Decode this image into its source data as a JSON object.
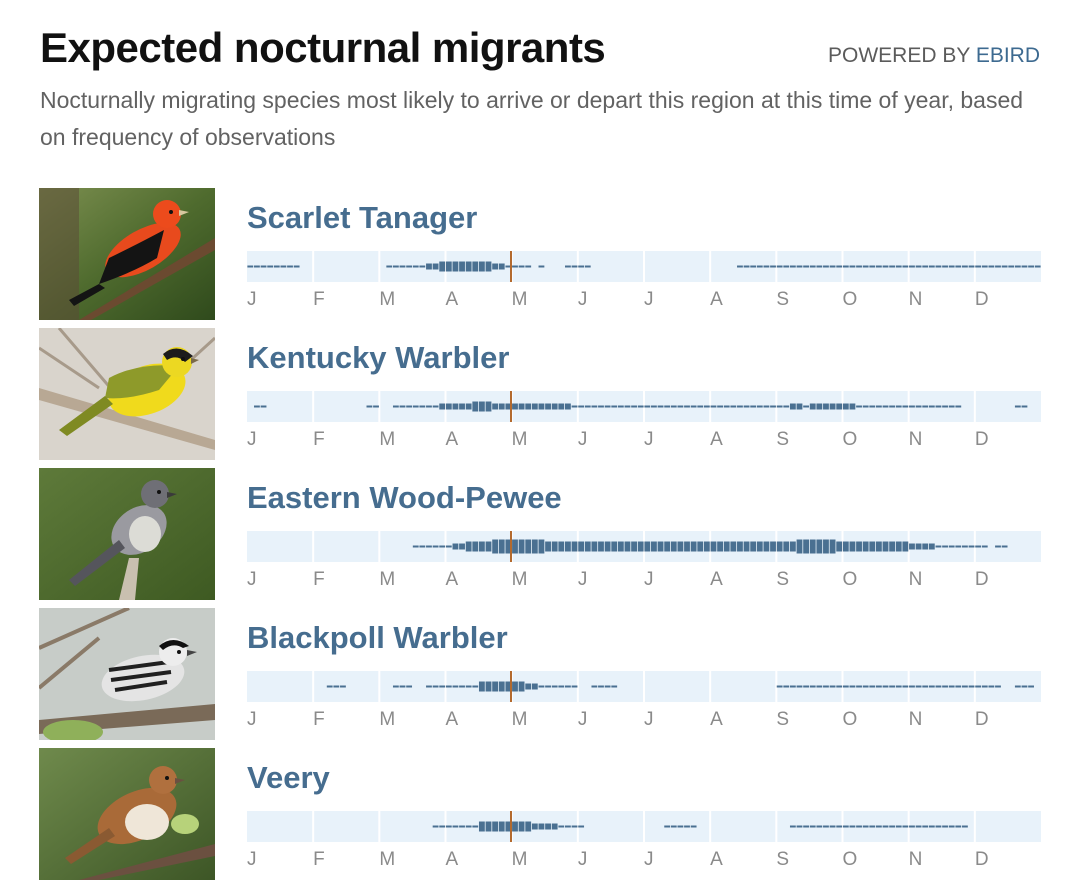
{
  "header": {
    "title": "Expected nocturnal migrants",
    "powered_prefix": "POWERED BY ",
    "powered_brand": "EBIRD",
    "subtitle": "Nocturnally migrating species most likely to arrive or depart this region at this time of year, based on frequency of observations"
  },
  "months": [
    "J",
    "F",
    "M",
    "A",
    "M",
    "J",
    "J",
    "A",
    "S",
    "O",
    "N",
    "D"
  ],
  "colors": {
    "bar": "#4a7091",
    "bar_background": "#e8f2fa",
    "current_date_marker": "#b36a2e",
    "species_name": "#466d8f"
  },
  "species": [
    {
      "name": "Scarlet Tanager",
      "photo_icon": "scarlet-tanager-photo",
      "frequency": [
        1,
        1,
        1,
        1,
        1,
        1,
        1,
        1,
        0,
        0,
        0,
        0,
        0,
        0,
        0,
        0,
        0,
        0,
        0,
        0,
        0,
        1,
        1,
        1,
        1,
        1,
        1,
        2,
        2,
        3,
        3,
        3,
        3,
        3,
        3,
        3,
        3,
        2,
        2,
        1,
        1,
        1,
        1,
        0,
        1,
        0,
        0,
        0,
        1,
        1,
        1,
        1,
        0,
        0,
        0,
        0,
        0,
        0,
        0,
        0,
        0,
        0,
        0,
        0,
        0,
        0,
        0,
        0,
        0,
        0,
        0,
        0,
        0,
        0,
        1,
        1,
        1,
        1,
        1,
        1,
        1,
        1,
        1,
        1,
        1,
        1,
        1,
        1,
        1,
        1,
        1,
        1,
        1,
        1,
        1,
        1,
        1,
        1,
        1,
        1,
        1,
        1,
        1,
        1,
        1,
        1,
        1,
        1,
        1,
        1,
        1,
        1,
        1,
        1,
        1,
        1,
        1,
        1,
        1,
        1
      ]
    },
    {
      "name": "Kentucky Warbler",
      "photo_icon": "kentucky-warbler-photo",
      "frequency": [
        0,
        1,
        1,
        0,
        0,
        0,
        0,
        0,
        0,
        0,
        0,
        0,
        0,
        0,
        0,
        0,
        0,
        0,
        1,
        1,
        0,
        0,
        1,
        1,
        1,
        1,
        1,
        1,
        1,
        2,
        2,
        2,
        2,
        2,
        3,
        3,
        3,
        2,
        2,
        2,
        2,
        2,
        2,
        2,
        2,
        2,
        2,
        2,
        2,
        1,
        1,
        1,
        1,
        1,
        1,
        1,
        1,
        1,
        1,
        1,
        1,
        1,
        1,
        1,
        1,
        1,
        1,
        1,
        1,
        1,
        1,
        1,
        1,
        1,
        1,
        1,
        1,
        1,
        1,
        1,
        1,
        1,
        2,
        2,
        1,
        2,
        2,
        2,
        2,
        2,
        2,
        2,
        1,
        1,
        1,
        1,
        1,
        1,
        1,
        1,
        1,
        1,
        1,
        1,
        1,
        1,
        1,
        1,
        0,
        0,
        0,
        0,
        0,
        0,
        0,
        0,
        1,
        1,
        0,
        0
      ]
    },
    {
      "name": "Eastern Wood-Pewee",
      "photo_icon": "eastern-wood-pewee-photo",
      "frequency": [
        0,
        0,
        0,
        0,
        0,
        0,
        0,
        0,
        0,
        0,
        0,
        0,
        0,
        0,
        0,
        0,
        0,
        0,
        0,
        0,
        0,
        0,
        0,
        0,
        0,
        1,
        1,
        1,
        1,
        1,
        1,
        2,
        2,
        3,
        3,
        3,
        3,
        4,
        4,
        4,
        4,
        4,
        4,
        4,
        4,
        3,
        3,
        3,
        3,
        3,
        3,
        3,
        3,
        3,
        3,
        3,
        3,
        3,
        3,
        3,
        3,
        3,
        3,
        3,
        3,
        3,
        3,
        3,
        3,
        3,
        3,
        3,
        3,
        3,
        3,
        3,
        3,
        3,
        3,
        3,
        3,
        3,
        3,
        4,
        4,
        4,
        4,
        4,
        4,
        3,
        3,
        3,
        3,
        3,
        3,
        3,
        3,
        3,
        3,
        3,
        2,
        2,
        2,
        2,
        1,
        1,
        1,
        1,
        1,
        1,
        1,
        1,
        0,
        1,
        1,
        0,
        0,
        0,
        0,
        0
      ]
    },
    {
      "name": "Blackpoll Warbler",
      "photo_icon": "blackpoll-warbler-photo",
      "frequency": [
        0,
        0,
        0,
        0,
        0,
        0,
        0,
        0,
        0,
        0,
        0,
        0,
        1,
        1,
        1,
        0,
        0,
        0,
        0,
        0,
        0,
        0,
        1,
        1,
        1,
        0,
        0,
        1,
        1,
        1,
        1,
        1,
        1,
        1,
        1,
        3,
        3,
        3,
        3,
        3,
        3,
        3,
        2,
        2,
        1,
        1,
        1,
        1,
        1,
        1,
        0,
        0,
        1,
        1,
        1,
        1,
        0,
        0,
        0,
        0,
        0,
        0,
        0,
        0,
        0,
        0,
        0,
        0,
        0,
        0,
        0,
        0,
        0,
        0,
        0,
        0,
        0,
        0,
        0,
        0,
        1,
        1,
        1,
        1,
        1,
        1,
        1,
        1,
        1,
        1,
        1,
        1,
        1,
        1,
        1,
        1,
        1,
        1,
        1,
        1,
        1,
        1,
        1,
        1,
        1,
        1,
        1,
        1,
        1,
        1,
        1,
        1,
        1,
        1,
        0,
        0,
        1,
        1,
        1,
        0
      ]
    },
    {
      "name": "Veery",
      "photo_icon": "veery-photo",
      "frequency": [
        0,
        0,
        0,
        0,
        0,
        0,
        0,
        0,
        0,
        0,
        0,
        0,
        0,
        0,
        0,
        0,
        0,
        0,
        0,
        0,
        0,
        0,
        0,
        0,
        0,
        0,
        0,
        0,
        1,
        1,
        1,
        1,
        1,
        1,
        1,
        3,
        3,
        3,
        3,
        3,
        3,
        3,
        3,
        2,
        2,
        2,
        2,
        1,
        1,
        1,
        1,
        0,
        0,
        0,
        0,
        0,
        0,
        0,
        0,
        0,
        0,
        0,
        0,
        1,
        1,
        1,
        1,
        1,
        0,
        0,
        0,
        0,
        0,
        0,
        0,
        0,
        0,
        0,
        0,
        0,
        0,
        0,
        1,
        1,
        1,
        1,
        1,
        1,
        1,
        1,
        1,
        1,
        1,
        1,
        1,
        1,
        1,
        1,
        1,
        1,
        1,
        1,
        1,
        1,
        1,
        1,
        1,
        1,
        1,
        0,
        0,
        0,
        0,
        0,
        0,
        0,
        0,
        0,
        0,
        0
      ]
    }
  ]
}
